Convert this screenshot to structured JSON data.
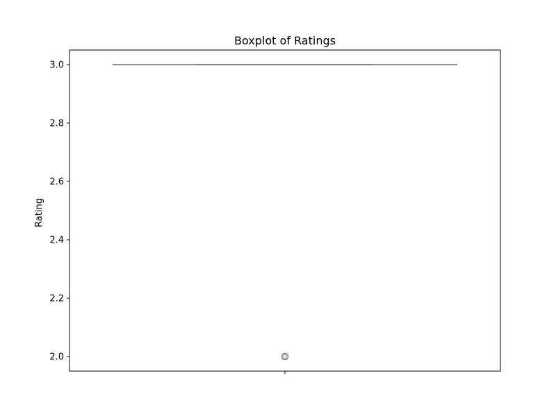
{
  "chart_data": {
    "type": "boxplot",
    "title": "Boxplot of Ratings",
    "xlabel": "",
    "ylabel": "Rating",
    "ylim": [
      1.95,
      3.05
    ],
    "yticks": [
      2.0,
      2.2,
      2.4,
      2.6,
      2.8,
      3.0
    ],
    "ytick_labels": [
      "2.0",
      "2.2",
      "2.4",
      "2.6",
      "2.8",
      "3.0"
    ],
    "xticks": [
      ""
    ],
    "grid": false,
    "box": {
      "whisker_low": 3.0,
      "q1": 3.0,
      "median": 3.0,
      "q3": 3.0,
      "whisker_high": 3.0,
      "outliers": [
        2.0
      ]
    },
    "colors": {
      "box_line": "#7f7f7f",
      "axes": "#000000"
    }
  }
}
